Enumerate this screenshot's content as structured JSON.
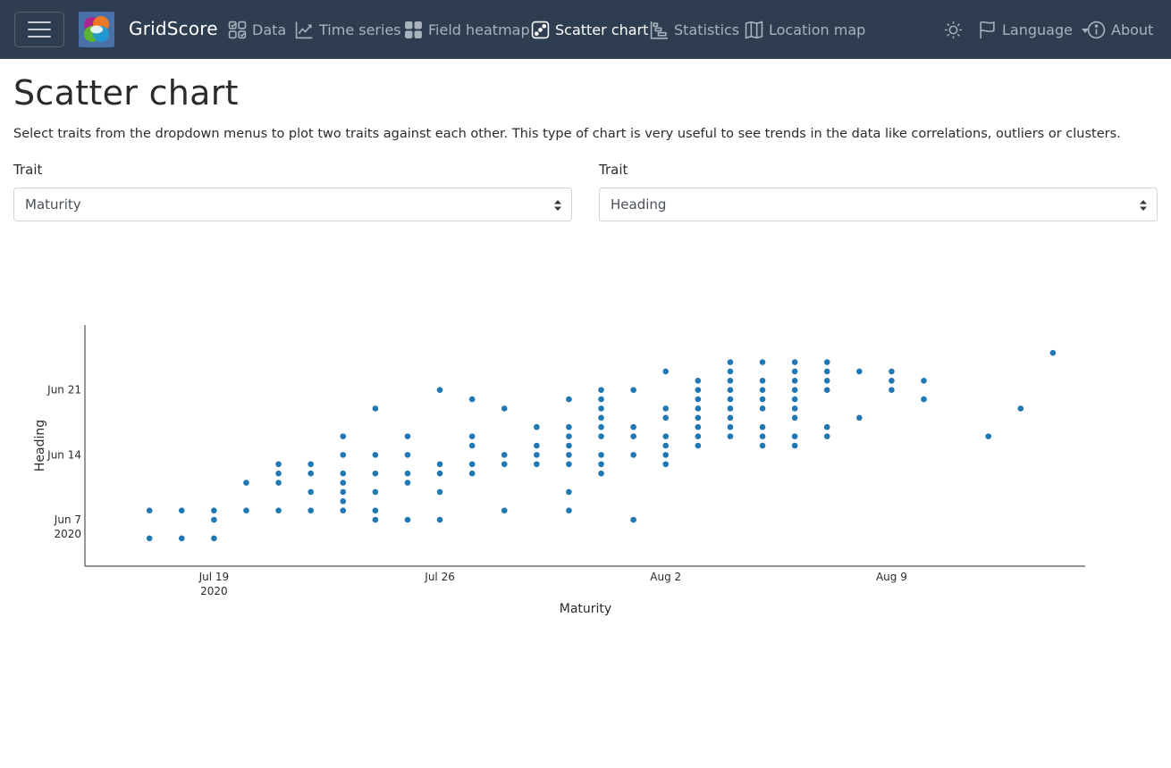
{
  "app": {
    "brand": "GridScore"
  },
  "nav": {
    "items": [
      {
        "label": "Data",
        "icon": "data-icon"
      },
      {
        "label": "Time series",
        "icon": "time-series-icon"
      },
      {
        "label": "Field heatmap",
        "icon": "field-heatmap-icon"
      },
      {
        "label": "Scatter chart",
        "icon": "scatter-chart-icon",
        "active": true
      },
      {
        "label": "Statistics",
        "icon": "statistics-icon"
      },
      {
        "label": "Location map",
        "icon": "location-map-icon"
      }
    ],
    "theme_icon": "sun-icon",
    "language": {
      "label": "Language",
      "icon": "flag-icon"
    },
    "about": {
      "label": "About",
      "icon": "info-icon"
    }
  },
  "page": {
    "title": "Scatter chart",
    "description": "Select traits from the dropdown menus to plot two traits against each other. This type of chart is very useful to see trends in the data like correlations, outliers or clusters."
  },
  "selectors": {
    "x": {
      "label": "Trait",
      "value": "Maturity"
    },
    "y": {
      "label": "Trait",
      "value": "Heading"
    }
  },
  "colors": {
    "navbar": "#2e3d50",
    "point": "#1f77b4"
  },
  "chart_data": {
    "type": "scatter",
    "xlabel": "Maturity",
    "ylabel": "Heading",
    "x_ticks": [
      {
        "value": "2020-07-19",
        "label": "Jul 19",
        "sublabel": "2020"
      },
      {
        "value": "2020-07-26",
        "label": "Jul 26"
      },
      {
        "value": "2020-08-02",
        "label": "Aug 2"
      },
      {
        "value": "2020-08-09",
        "label": "Aug 9"
      }
    ],
    "y_ticks": [
      {
        "value": "2020-06-07",
        "label": "Jun 7",
        "sublabel": "2020"
      },
      {
        "value": "2020-06-14",
        "label": "Jun 14"
      },
      {
        "value": "2020-06-21",
        "label": "Jun 21"
      }
    ],
    "xlim": [
      "2020-07-15",
      "2020-08-15"
    ],
    "ylim": [
      "2020-06-02",
      "2020-06-28"
    ],
    "grid": false,
    "series": [
      {
        "points": [
          [
            "2020-07-17",
            "2020-06-05"
          ],
          [
            "2020-07-17",
            "2020-06-08"
          ],
          [
            "2020-07-18",
            "2020-06-05"
          ],
          [
            "2020-07-18",
            "2020-06-08"
          ],
          [
            "2020-07-19",
            "2020-06-05"
          ],
          [
            "2020-07-19",
            "2020-06-07"
          ],
          [
            "2020-07-19",
            "2020-06-08"
          ],
          [
            "2020-07-20",
            "2020-06-08"
          ],
          [
            "2020-07-20",
            "2020-06-11"
          ],
          [
            "2020-07-21",
            "2020-06-08"
          ],
          [
            "2020-07-21",
            "2020-06-11"
          ],
          [
            "2020-07-21",
            "2020-06-12"
          ],
          [
            "2020-07-21",
            "2020-06-13"
          ],
          [
            "2020-07-22",
            "2020-06-08"
          ],
          [
            "2020-07-22",
            "2020-06-10"
          ],
          [
            "2020-07-22",
            "2020-06-12"
          ],
          [
            "2020-07-22",
            "2020-06-13"
          ],
          [
            "2020-07-23",
            "2020-06-08"
          ],
          [
            "2020-07-23",
            "2020-06-09"
          ],
          [
            "2020-07-23",
            "2020-06-10"
          ],
          [
            "2020-07-23",
            "2020-06-11"
          ],
          [
            "2020-07-23",
            "2020-06-12"
          ],
          [
            "2020-07-23",
            "2020-06-14"
          ],
          [
            "2020-07-23",
            "2020-06-16"
          ],
          [
            "2020-07-24",
            "2020-06-07"
          ],
          [
            "2020-07-24",
            "2020-06-08"
          ],
          [
            "2020-07-24",
            "2020-06-10"
          ],
          [
            "2020-07-24",
            "2020-06-12"
          ],
          [
            "2020-07-24",
            "2020-06-14"
          ],
          [
            "2020-07-24",
            "2020-06-19"
          ],
          [
            "2020-07-25",
            "2020-06-07"
          ],
          [
            "2020-07-25",
            "2020-06-11"
          ],
          [
            "2020-07-25",
            "2020-06-12"
          ],
          [
            "2020-07-25",
            "2020-06-14"
          ],
          [
            "2020-07-25",
            "2020-06-16"
          ],
          [
            "2020-07-26",
            "2020-06-07"
          ],
          [
            "2020-07-26",
            "2020-06-10"
          ],
          [
            "2020-07-26",
            "2020-06-12"
          ],
          [
            "2020-07-26",
            "2020-06-13"
          ],
          [
            "2020-07-26",
            "2020-06-21"
          ],
          [
            "2020-07-27",
            "2020-06-12"
          ],
          [
            "2020-07-27",
            "2020-06-13"
          ],
          [
            "2020-07-27",
            "2020-06-15"
          ],
          [
            "2020-07-27",
            "2020-06-16"
          ],
          [
            "2020-07-27",
            "2020-06-20"
          ],
          [
            "2020-07-28",
            "2020-06-08"
          ],
          [
            "2020-07-28",
            "2020-06-13"
          ],
          [
            "2020-07-28",
            "2020-06-14"
          ],
          [
            "2020-07-28",
            "2020-06-19"
          ],
          [
            "2020-07-29",
            "2020-06-13"
          ],
          [
            "2020-07-29",
            "2020-06-14"
          ],
          [
            "2020-07-29",
            "2020-06-15"
          ],
          [
            "2020-07-29",
            "2020-06-17"
          ],
          [
            "2020-07-30",
            "2020-06-08"
          ],
          [
            "2020-07-30",
            "2020-06-10"
          ],
          [
            "2020-07-30",
            "2020-06-13"
          ],
          [
            "2020-07-30",
            "2020-06-14"
          ],
          [
            "2020-07-30",
            "2020-06-15"
          ],
          [
            "2020-07-30",
            "2020-06-16"
          ],
          [
            "2020-07-30",
            "2020-06-17"
          ],
          [
            "2020-07-30",
            "2020-06-20"
          ],
          [
            "2020-07-31",
            "2020-06-12"
          ],
          [
            "2020-07-31",
            "2020-06-13"
          ],
          [
            "2020-07-31",
            "2020-06-14"
          ],
          [
            "2020-07-31",
            "2020-06-16"
          ],
          [
            "2020-07-31",
            "2020-06-17"
          ],
          [
            "2020-07-31",
            "2020-06-18"
          ],
          [
            "2020-07-31",
            "2020-06-19"
          ],
          [
            "2020-07-31",
            "2020-06-20"
          ],
          [
            "2020-07-31",
            "2020-06-21"
          ],
          [
            "2020-08-01",
            "2020-06-07"
          ],
          [
            "2020-08-01",
            "2020-06-14"
          ],
          [
            "2020-08-01",
            "2020-06-16"
          ],
          [
            "2020-08-01",
            "2020-06-17"
          ],
          [
            "2020-08-01",
            "2020-06-21"
          ],
          [
            "2020-08-02",
            "2020-06-13"
          ],
          [
            "2020-08-02",
            "2020-06-14"
          ],
          [
            "2020-08-02",
            "2020-06-15"
          ],
          [
            "2020-08-02",
            "2020-06-16"
          ],
          [
            "2020-08-02",
            "2020-06-18"
          ],
          [
            "2020-08-02",
            "2020-06-19"
          ],
          [
            "2020-08-02",
            "2020-06-23"
          ],
          [
            "2020-08-03",
            "2020-06-15"
          ],
          [
            "2020-08-03",
            "2020-06-16"
          ],
          [
            "2020-08-03",
            "2020-06-17"
          ],
          [
            "2020-08-03",
            "2020-06-18"
          ],
          [
            "2020-08-03",
            "2020-06-19"
          ],
          [
            "2020-08-03",
            "2020-06-20"
          ],
          [
            "2020-08-03",
            "2020-06-21"
          ],
          [
            "2020-08-03",
            "2020-06-22"
          ],
          [
            "2020-08-04",
            "2020-06-16"
          ],
          [
            "2020-08-04",
            "2020-06-17"
          ],
          [
            "2020-08-04",
            "2020-06-18"
          ],
          [
            "2020-08-04",
            "2020-06-19"
          ],
          [
            "2020-08-04",
            "2020-06-20"
          ],
          [
            "2020-08-04",
            "2020-06-21"
          ],
          [
            "2020-08-04",
            "2020-06-22"
          ],
          [
            "2020-08-04",
            "2020-06-23"
          ],
          [
            "2020-08-04",
            "2020-06-24"
          ],
          [
            "2020-08-05",
            "2020-06-15"
          ],
          [
            "2020-08-05",
            "2020-06-16"
          ],
          [
            "2020-08-05",
            "2020-06-17"
          ],
          [
            "2020-08-05",
            "2020-06-19"
          ],
          [
            "2020-08-05",
            "2020-06-20"
          ],
          [
            "2020-08-05",
            "2020-06-21"
          ],
          [
            "2020-08-05",
            "2020-06-22"
          ],
          [
            "2020-08-05",
            "2020-06-24"
          ],
          [
            "2020-08-06",
            "2020-06-15"
          ],
          [
            "2020-08-06",
            "2020-06-16"
          ],
          [
            "2020-08-06",
            "2020-06-18"
          ],
          [
            "2020-08-06",
            "2020-06-19"
          ],
          [
            "2020-08-06",
            "2020-06-20"
          ],
          [
            "2020-08-06",
            "2020-06-21"
          ],
          [
            "2020-08-06",
            "2020-06-22"
          ],
          [
            "2020-08-06",
            "2020-06-23"
          ],
          [
            "2020-08-06",
            "2020-06-24"
          ],
          [
            "2020-08-07",
            "2020-06-16"
          ],
          [
            "2020-08-07",
            "2020-06-17"
          ],
          [
            "2020-08-07",
            "2020-06-21"
          ],
          [
            "2020-08-07",
            "2020-06-22"
          ],
          [
            "2020-08-07",
            "2020-06-23"
          ],
          [
            "2020-08-07",
            "2020-06-24"
          ],
          [
            "2020-08-08",
            "2020-06-18"
          ],
          [
            "2020-08-08",
            "2020-06-23"
          ],
          [
            "2020-08-09",
            "2020-06-21"
          ],
          [
            "2020-08-09",
            "2020-06-22"
          ],
          [
            "2020-08-09",
            "2020-06-23"
          ],
          [
            "2020-08-10",
            "2020-06-20"
          ],
          [
            "2020-08-10",
            "2020-06-22"
          ],
          [
            "2020-08-12",
            "2020-06-16"
          ],
          [
            "2020-08-13",
            "2020-06-19"
          ],
          [
            "2020-08-14",
            "2020-06-25"
          ]
        ]
      }
    ]
  }
}
